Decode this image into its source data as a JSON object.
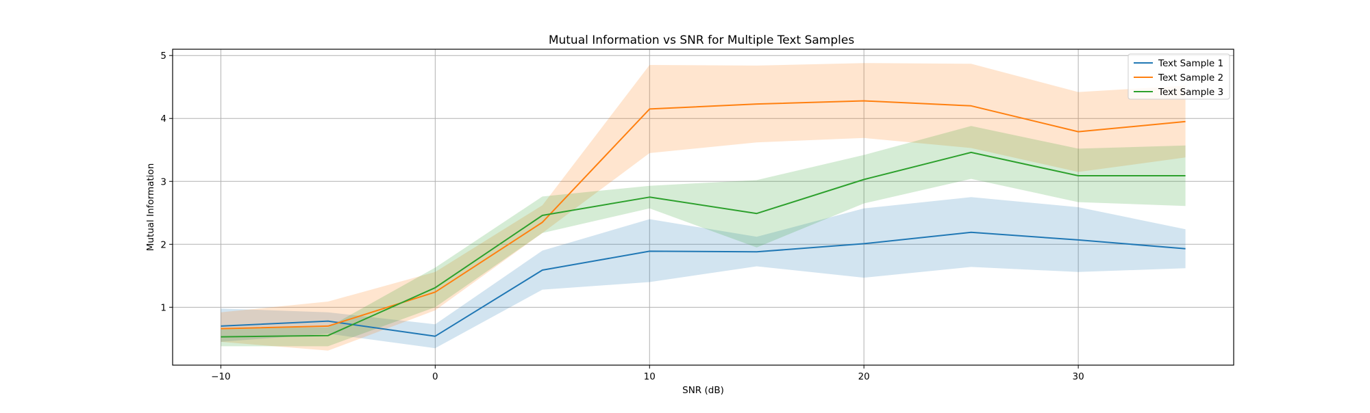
{
  "chart_data": {
    "type": "line",
    "title": "Mutual Information vs SNR for Multiple Text Samples",
    "xlabel": "SNR (dB)",
    "ylabel": "Mutual Information",
    "x": [
      -10,
      -5,
      0,
      5,
      10,
      15,
      20,
      25,
      30,
      35
    ],
    "xlim": [
      -12.25,
      37.25
    ],
    "ylim": [
      0.08,
      5.1
    ],
    "xticks": [
      -10,
      0,
      10,
      20,
      30
    ],
    "xtick_labels": [
      "−10",
      "0",
      "10",
      "20",
      "30"
    ],
    "yticks": [
      1,
      2,
      3,
      4,
      5
    ],
    "ytick_labels": [
      "1",
      "2",
      "3",
      "4",
      "5"
    ],
    "grid": true,
    "legend_position": "top-right",
    "series": [
      {
        "name": "Text Sample 1",
        "color": "#1f77b4",
        "values": [
          0.7,
          0.78,
          0.54,
          1.59,
          1.89,
          1.88,
          2.01,
          2.19,
          2.07,
          1.93
        ],
        "lower": [
          0.45,
          0.58,
          0.35,
          1.28,
          1.4,
          1.65,
          1.47,
          1.64,
          1.56,
          1.62
        ],
        "upper": [
          0.98,
          0.92,
          0.73,
          1.9,
          2.4,
          2.12,
          2.57,
          2.75,
          2.59,
          2.24
        ]
      },
      {
        "name": "Text Sample 2",
        "color": "#ff7f0e",
        "values": [
          0.66,
          0.7,
          1.24,
          2.35,
          4.15,
          4.23,
          4.28,
          4.2,
          3.79,
          3.95
        ],
        "lower": [
          0.45,
          0.31,
          0.95,
          2.18,
          3.45,
          3.62,
          3.69,
          3.53,
          3.15,
          3.38
        ],
        "upper": [
          0.92,
          1.09,
          1.56,
          2.62,
          4.85,
          4.84,
          4.88,
          4.87,
          4.42,
          4.52
        ]
      },
      {
        "name": "Text Sample 3",
        "color": "#2ca02c",
        "values": [
          0.53,
          0.55,
          1.31,
          2.46,
          2.75,
          2.49,
          3.03,
          3.46,
          3.09,
          3.09
        ],
        "lower": [
          0.38,
          0.38,
          1.0,
          2.18,
          2.57,
          1.95,
          2.65,
          3.04,
          2.67,
          2.61
        ],
        "upper": [
          0.67,
          0.68,
          1.63,
          2.76,
          2.93,
          3.02,
          3.42,
          3.88,
          3.52,
          3.57
        ]
      }
    ]
  }
}
